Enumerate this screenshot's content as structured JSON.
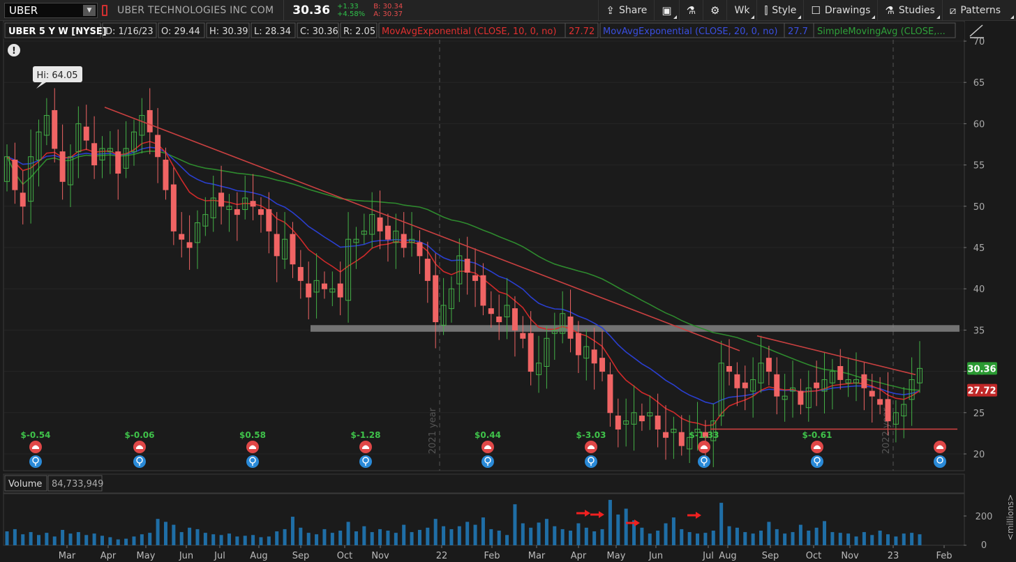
{
  "toolbar": {
    "symbol": "UBER",
    "company": "UBER TECHNOLOGIES INC COM",
    "last": "30.36",
    "change": "+1.33",
    "change_pct": "+4.58%",
    "bid": "B: 30.34",
    "ask": "A: 30.37",
    "share_label": "Share",
    "period_label": "Wk",
    "style_label": "Style",
    "drawings_label": "Drawings",
    "studies_label": "Studies",
    "patterns_label": "Patterns"
  },
  "header": {
    "title": "UBER 5 Y W [NYSE]",
    "date": "D: 1/16/23",
    "open": "O: 29.44",
    "high": "H: 30.39",
    "low": "L: 28.34",
    "close": "C: 30.36",
    "range": "R: 2.05",
    "study1": "MovAvgExponential (CLOSE, 10, 0, no)",
    "study1_val": "27.72",
    "study2": "MovAvgExponential (CLOSE, 20, 0, no)",
    "study2_val": "27.7",
    "study3": "SimpleMovingAvg (CLOSE,..."
  },
  "volume_panel": {
    "label": "Volume",
    "value": "84,733,949",
    "unit": "<millions>",
    "ticks": [
      200,
      0
    ]
  },
  "colors": {
    "up": "#43b047",
    "down": "#f06464",
    "ema10": "#d02a2a",
    "ema20": "#2a3fd0",
    "sma": "#2e8a2e",
    "volume": "#1f6ea6",
    "trendline": "#c94040",
    "resistance": "#8a8a8a"
  },
  "chart_data": {
    "type": "candlestick",
    "yticks": [
      70,
      65,
      60,
      55,
      50,
      45,
      40,
      35,
      30,
      25,
      20
    ],
    "ylim": [
      19,
      71
    ],
    "xticks": [
      "Mar",
      "Apr",
      "May",
      "Jun",
      "Jul",
      "Aug",
      "Sep",
      "Oct",
      "Nov",
      "22",
      "Feb",
      "Mar",
      "Apr",
      "May",
      "Jun",
      "Jul",
      "Aug",
      "Sep",
      "Oct",
      "Nov",
      "23",
      "Feb"
    ],
    "year_markers": [
      "2021 year",
      "2022 year"
    ],
    "high_label": "Hi: 64.05",
    "last_price_label": "30.36",
    "ema10_label": "27.72",
    "earnings": [
      "$-0.54",
      "$-0.06",
      "$0.58",
      "$-1.28",
      "$0.44",
      "$-3.03",
      "$-1.33",
      "$-0.61"
    ],
    "resistance_zone": [
      34.8,
      35.6
    ],
    "support_level": 23.0,
    "candles_close": [
      56,
      52,
      50,
      56,
      59,
      61,
      57,
      53,
      56,
      60,
      58,
      55,
      57,
      57,
      54,
      57,
      59,
      61,
      59,
      56,
      52,
      47,
      46,
      45,
      48,
      49,
      51,
      50,
      50,
      49,
      51,
      50,
      49,
      47,
      44,
      46,
      43,
      41,
      39,
      41,
      40,
      40,
      39,
      46,
      46,
      47,
      49,
      47,
      46,
      47,
      45,
      46,
      44,
      41,
      36,
      38,
      40,
      44,
      42,
      41,
      38,
      37,
      36,
      38,
      35,
      34,
      30,
      31,
      34,
      35,
      37,
      34,
      32,
      33,
      31,
      30,
      25,
      23,
      24,
      25,
      24,
      25,
      23,
      22,
      23,
      21,
      22,
      23,
      22,
      24,
      31,
      30,
      28,
      28,
      29,
      31,
      30,
      27,
      27,
      28,
      26,
      28,
      28,
      29,
      30,
      29,
      29,
      29,
      28,
      27,
      26,
      24,
      25,
      26,
      29,
      30.36
    ],
    "volume": [
      95,
      110,
      75,
      90,
      70,
      85,
      60,
      105,
      80,
      90,
      70,
      80,
      65,
      55,
      40,
      45,
      60,
      75,
      85,
      180,
      160,
      140,
      90,
      120,
      110,
      85,
      75,
      70,
      80,
      60,
      65,
      70,
      55,
      60,
      95,
      110,
      195,
      120,
      85,
      75,
      110,
      85,
      100,
      160,
      95,
      130,
      90,
      110,
      100,
      85,
      140,
      90,
      105,
      120,
      180,
      130,
      110,
      130,
      160,
      140,
      190,
      110,
      100,
      70,
      280,
      150,
      120,
      155,
      180,
      130,
      110,
      100,
      150,
      120,
      95,
      110,
      310,
      210,
      250,
      170,
      120,
      80,
      100,
      150,
      190,
      110,
      90,
      80,
      85,
      100,
      290,
      130,
      120,
      90,
      80,
      100,
      160,
      110,
      80,
      90,
      140,
      100,
      120,
      165,
      90,
      85,
      80,
      60,
      90,
      70,
      100,
      75,
      60,
      80,
      85,
      75
    ]
  }
}
